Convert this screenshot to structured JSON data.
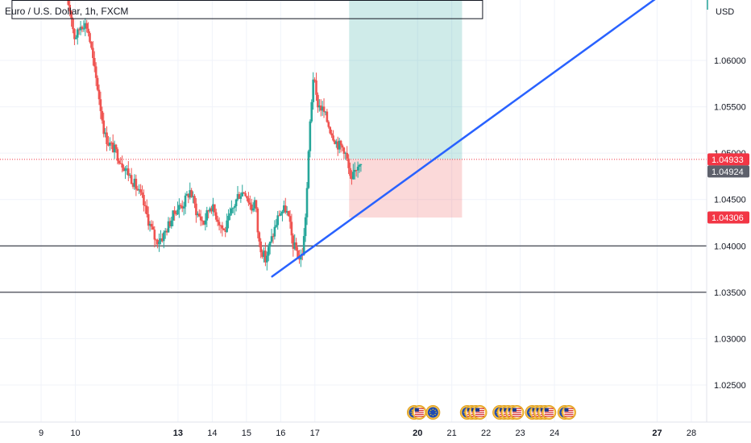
{
  "chart_data": {
    "type": "candlestick",
    "title": "Euro / U.S. Dollar, 1h, FXCM",
    "currency": "USD",
    "ylim": [
      1.0205,
      1.0678
    ],
    "y_ticks": [
      1.06,
      1.055,
      1.05,
      1.045,
      1.04,
      1.035,
      1.03,
      1.025
    ],
    "y_tick_labels": [
      "1.06000",
      "1.05500",
      "1.05000",
      "1.04500",
      "1.04000",
      "1.03500",
      "1.03000",
      "1.02500"
    ],
    "x_ticks": [
      {
        "day": 9,
        "label": "9",
        "bold": false
      },
      {
        "day": 10,
        "label": "10",
        "bold": false
      },
      {
        "day": 13,
        "label": "13",
        "bold": true
      },
      {
        "day": 14,
        "label": "14",
        "bold": false
      },
      {
        "day": 15,
        "label": "15",
        "bold": false
      },
      {
        "day": 16,
        "label": "16",
        "bold": false
      },
      {
        "day": 17,
        "label": "17",
        "bold": false
      },
      {
        "day": 20,
        "label": "20",
        "bold": true
      },
      {
        "day": 21,
        "label": "21",
        "bold": false
      },
      {
        "day": 22,
        "label": "22",
        "bold": false
      },
      {
        "day": 23,
        "label": "23",
        "bold": false
      },
      {
        "day": 24,
        "label": "24",
        "bold": false
      },
      {
        "day": 27,
        "label": "27",
        "bold": true
      },
      {
        "day": 28,
        "label": "28",
        "bold": false
      }
    ],
    "price_path": [
      [
        9.75,
        1.0672
      ],
      [
        9.85,
        1.066
      ],
      [
        9.95,
        1.0645
      ],
      [
        10.0,
        1.0625
      ],
      [
        10.1,
        1.0628
      ],
      [
        10.2,
        1.0638
      ],
      [
        10.3,
        1.064
      ],
      [
        10.4,
        1.0636
      ],
      [
        10.5,
        1.0615
      ],
      [
        10.6,
        1.059
      ],
      [
        10.7,
        1.057
      ],
      [
        10.8,
        1.0545
      ],
      [
        10.9,
        1.052
      ],
      [
        11.0,
        1.0512
      ],
      [
        11.2,
        1.0503
      ],
      [
        11.4,
        1.049
      ],
      [
        11.6,
        1.0478
      ],
      [
        11.8,
        1.0465
      ],
      [
        12.0,
        1.045
      ],
      [
        12.2,
        1.0425
      ],
      [
        12.4,
        1.0405
      ],
      [
        12.6,
        1.041
      ],
      [
        12.8,
        1.0425
      ],
      [
        13.0,
        1.044
      ],
      [
        13.2,
        1.0445
      ],
      [
        13.4,
        1.046
      ],
      [
        13.6,
        1.0435
      ],
      [
        13.8,
        1.0425
      ],
      [
        14.0,
        1.0445
      ],
      [
        14.2,
        1.043
      ],
      [
        14.4,
        1.0415
      ],
      [
        14.6,
        1.0435
      ],
      [
        14.8,
        1.0455
      ],
      [
        15.0,
        1.046
      ],
      [
        15.2,
        1.044
      ],
      [
        15.3,
        1.045
      ],
      [
        15.4,
        1.0405
      ],
      [
        15.5,
        1.0395
      ],
      [
        15.6,
        1.0385
      ],
      [
        15.8,
        1.041
      ],
      [
        16.0,
        1.0435
      ],
      [
        16.2,
        1.044
      ],
      [
        16.3,
        1.0425
      ],
      [
        16.4,
        1.0402
      ],
      [
        16.5,
        1.0395
      ],
      [
        16.6,
        1.0385
      ],
      [
        16.7,
        1.0395
      ],
      [
        16.8,
        1.045
      ],
      [
        16.9,
        1.053
      ],
      [
        17.0,
        1.0585
      ],
      [
        17.1,
        1.0555
      ],
      [
        17.3,
        1.0545
      ],
      [
        17.5,
        1.0525
      ],
      [
        17.7,
        1.051
      ],
      [
        17.9,
        1.0505
      ],
      [
        18.0,
        1.049
      ],
      [
        18.1,
        1.0465
      ],
      [
        18.2,
        1.048
      ],
      [
        18.35,
        1.0493
      ]
    ],
    "candle_range": [
      9.75,
      18.35
    ],
    "last_price_line": 1.04933,
    "support_lines": [
      1.04,
      1.035
    ],
    "position": {
      "entry": 1.04933,
      "stop": 1.04306,
      "target": 1.0675,
      "x_start": 18.0,
      "x_end": 21.3,
      "profit_color": "#26a69a",
      "loss_color": "#ef5350"
    },
    "trendline": {
      "x1": 15.75,
      "y1": 1.0367,
      "x2": 27.2,
      "y2": 1.0673,
      "color": "#2962ff"
    },
    "top_box": {
      "x1": 8.15,
      "x2": 21.9,
      "y1": 1.0645,
      "y2": 1.0678
    },
    "price_badges": [
      {
        "label": "1.04933",
        "value": 1.04933,
        "color": "#f23645"
      },
      {
        "label": "1.04924",
        "value": 1.04924,
        "color": "#5d606b"
      },
      {
        "label": "1.04306",
        "value": 1.04306,
        "color": "#f23645"
      }
    ],
    "event_markers": [
      {
        "group": [
          19.9,
          20.05
        ],
        "flags": [
          "eu",
          "us"
        ]
      },
      {
        "group": [
          20.45
        ],
        "flags": [
          "eu"
        ]
      },
      {
        "group": [
          21.45,
          21.58,
          21.7,
          21.82
        ],
        "flags": [
          "eu",
          "us",
          "us",
          "us"
        ]
      },
      {
        "group": [
          22.4,
          22.53,
          22.65,
          22.78,
          22.9
        ],
        "flags": [
          "eu",
          "us",
          "us",
          "us",
          "us"
        ]
      },
      {
        "group": [
          23.35,
          23.48,
          23.6,
          23.72,
          23.84
        ],
        "flags": [
          "eu",
          "us",
          "us",
          "us",
          "us"
        ]
      },
      {
        "group": [
          24.3,
          24.42
        ],
        "flags": [
          "eu",
          "us"
        ]
      }
    ],
    "colors": {
      "up": "#26a69a",
      "down": "#ef5350",
      "grid": "#f0f3fa",
      "axis_text": "#131722",
      "hline": "#131722"
    }
  }
}
